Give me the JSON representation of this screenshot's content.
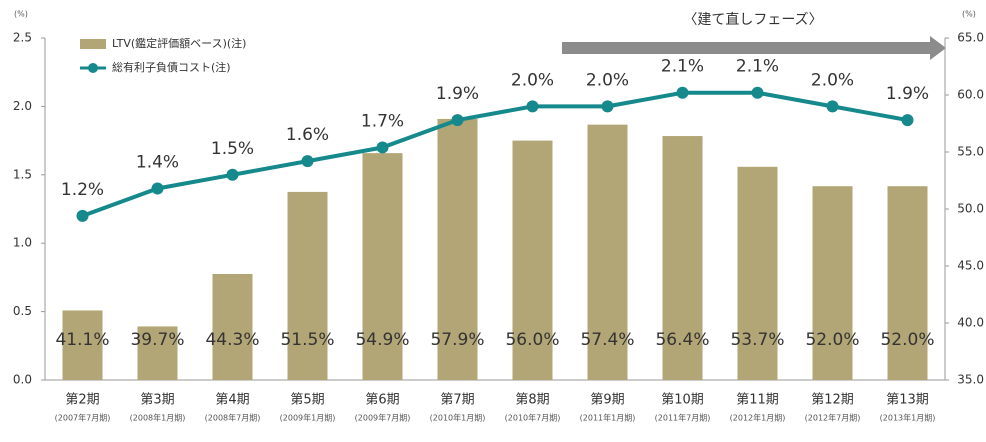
{
  "chart_data": {
    "type": "bar_line",
    "y_label": "(%)",
    "y2_label": "(%)",
    "annotation": "〈建て直しフェーズ〉",
    "categories": [
      "第2期",
      "第3期",
      "第4期",
      "第5期",
      "第6期",
      "第7期",
      "第8期",
      "第9期",
      "第10期",
      "第11期",
      "第12期",
      "第13期"
    ],
    "category_notes": [
      "(2007年7月期)",
      "(2008年1月期)",
      "(2008年7月期)",
      "(2009年1月期)",
      "(2009年7月期)",
      "(2010年1月期)",
      "(2010年7月期)",
      "(2011年1月期)",
      "(2011年7月期)",
      "(2012年1月期)",
      "(2012年7月期)",
      "(2013年1月期)"
    ],
    "series": [
      {
        "name": "LTV(鑑定評価額ベース)(注)",
        "type": "bar",
        "axis": "y2",
        "color": "#b3a676",
        "values": [
          41.1,
          39.7,
          44.3,
          51.5,
          54.9,
          57.9,
          56.0,
          57.4,
          56.4,
          53.7,
          52.0,
          52.0
        ],
        "value_labels": [
          "41.1%",
          "39.7%",
          "44.3%",
          "51.5%",
          "54.9%",
          "57.9%",
          "56.0%",
          "57.4%",
          "56.4%",
          "53.7%",
          "52.0%",
          "52.0%"
        ]
      },
      {
        "name": "総有利子負債コスト(注)",
        "type": "line",
        "axis": "y",
        "color": "#15898b",
        "values": [
          1.2,
          1.4,
          1.5,
          1.6,
          1.7,
          1.9,
          2.0,
          2.0,
          2.1,
          2.1,
          2.0,
          1.9
        ],
        "value_labels": [
          "1.2%",
          "1.4%",
          "1.5%",
          "1.6%",
          "1.7%",
          "1.9%",
          "2.0%",
          "2.0%",
          "2.1%",
          "2.1%",
          "2.0%",
          "1.9%"
        ]
      }
    ],
    "ylim": [
      0,
      2.5
    ],
    "yticks": [
      {
        "value": 0,
        "label": "0.0"
      },
      0.5,
      {
        "value": 1,
        "label": "1.0"
      },
      1.5,
      {
        "value": 2,
        "label": "2.0"
      },
      2.5
    ],
    "y2lim": [
      35,
      65
    ],
    "y2ticks": [
      {
        "value": 35,
        "label": "35.0"
      },
      {
        "value": 40,
        "label": "40.0"
      },
      {
        "value": 45,
        "label": "45.0"
      },
      {
        "value": 50,
        "label": "50.0"
      },
      {
        "value": 55,
        "label": "55.0"
      },
      {
        "value": 60,
        "label": "60.0"
      },
      {
        "value": 65,
        "label": "65.0"
      }
    ],
    "grid": false
  }
}
